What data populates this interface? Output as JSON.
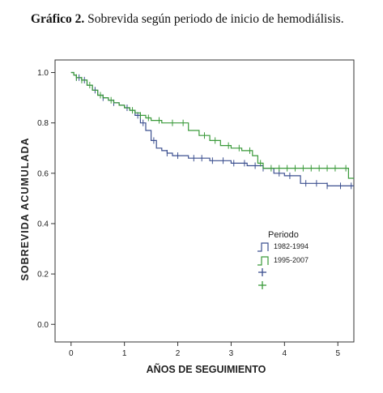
{
  "figure": {
    "title_bold": "Gráfico 2.",
    "title_rest": " Sobrevida según periodo de inicio de hemodiálisis."
  },
  "chart_data": {
    "type": "line",
    "subtype": "kaplan-meier step",
    "xlabel": "AÑOS DE SEGUIMIENTO",
    "ylabel": "SOBREVIDA ACUMULADA",
    "xlim": [
      -0.3,
      5.3
    ],
    "ylim": [
      -0.07,
      1.05
    ],
    "x_ticks": [
      0,
      1,
      2,
      3,
      4,
      5
    ],
    "y_ticks": [
      0.0,
      0.2,
      0.4,
      0.6,
      0.8,
      1.0
    ],
    "y_tick_labels": [
      "0.0",
      "0.2",
      "0.4",
      "0.6",
      "0.8",
      "1.0"
    ],
    "grid": false,
    "legend": {
      "title": "Periodo",
      "position": "center-right",
      "entries": [
        "1982-1994",
        "1995-2007"
      ]
    },
    "series": [
      {
        "name": "1982-1994",
        "color": "#3b4f8f",
        "x": [
          0,
          0.05,
          0.1,
          0.2,
          0.3,
          0.4,
          0.5,
          0.6,
          0.7,
          0.8,
          0.9,
          1.0,
          1.1,
          1.2,
          1.3,
          1.4,
          1.5,
          1.6,
          1.7,
          1.8,
          1.9,
          2.0,
          2.2,
          2.4,
          2.6,
          2.8,
          3.0,
          3.3,
          3.6,
          3.8,
          4.0,
          4.3,
          4.5,
          4.8,
          5.3
        ],
        "y": [
          1.0,
          0.99,
          0.98,
          0.97,
          0.95,
          0.93,
          0.91,
          0.9,
          0.89,
          0.88,
          0.87,
          0.86,
          0.85,
          0.83,
          0.8,
          0.77,
          0.73,
          0.7,
          0.69,
          0.68,
          0.67,
          0.67,
          0.66,
          0.66,
          0.65,
          0.65,
          0.64,
          0.63,
          0.62,
          0.6,
          0.59,
          0.56,
          0.56,
          0.55,
          0.55
        ],
        "censor_x": [
          0.1,
          0.15,
          0.25,
          0.45,
          0.6,
          0.8,
          1.05,
          1.25,
          1.35,
          1.55,
          1.8,
          2.0,
          2.3,
          2.45,
          2.65,
          2.85,
          3.05,
          3.25,
          3.45,
          3.6,
          3.9,
          4.1,
          4.4,
          4.6,
          4.8,
          5.05,
          5.25
        ]
      },
      {
        "name": "1995-2007",
        "color": "#3a9a3a",
        "x": [
          0,
          0.05,
          0.1,
          0.2,
          0.3,
          0.4,
          0.5,
          0.6,
          0.7,
          0.8,
          0.9,
          1.0,
          1.1,
          1.2,
          1.3,
          1.4,
          1.5,
          1.7,
          2.0,
          2.2,
          2.4,
          2.6,
          2.8,
          3.0,
          3.2,
          3.4,
          3.5,
          3.6,
          3.7,
          4.0,
          4.5,
          5.0,
          5.2,
          5.3
        ],
        "y": [
          1.0,
          0.99,
          0.98,
          0.97,
          0.95,
          0.93,
          0.91,
          0.9,
          0.89,
          0.88,
          0.87,
          0.86,
          0.85,
          0.84,
          0.83,
          0.82,
          0.81,
          0.8,
          0.8,
          0.77,
          0.75,
          0.73,
          0.71,
          0.7,
          0.69,
          0.67,
          0.64,
          0.62,
          0.62,
          0.62,
          0.62,
          0.62,
          0.58,
          0.58
        ],
        "censor_x": [
          0.1,
          0.2,
          0.35,
          0.55,
          0.75,
          1.15,
          1.3,
          1.45,
          1.65,
          1.9,
          2.1,
          2.5,
          2.7,
          2.95,
          3.15,
          3.35,
          3.55,
          3.75,
          3.9,
          4.05,
          4.2,
          4.35,
          4.5,
          4.65,
          4.8,
          4.95,
          5.15
        ]
      }
    ]
  }
}
